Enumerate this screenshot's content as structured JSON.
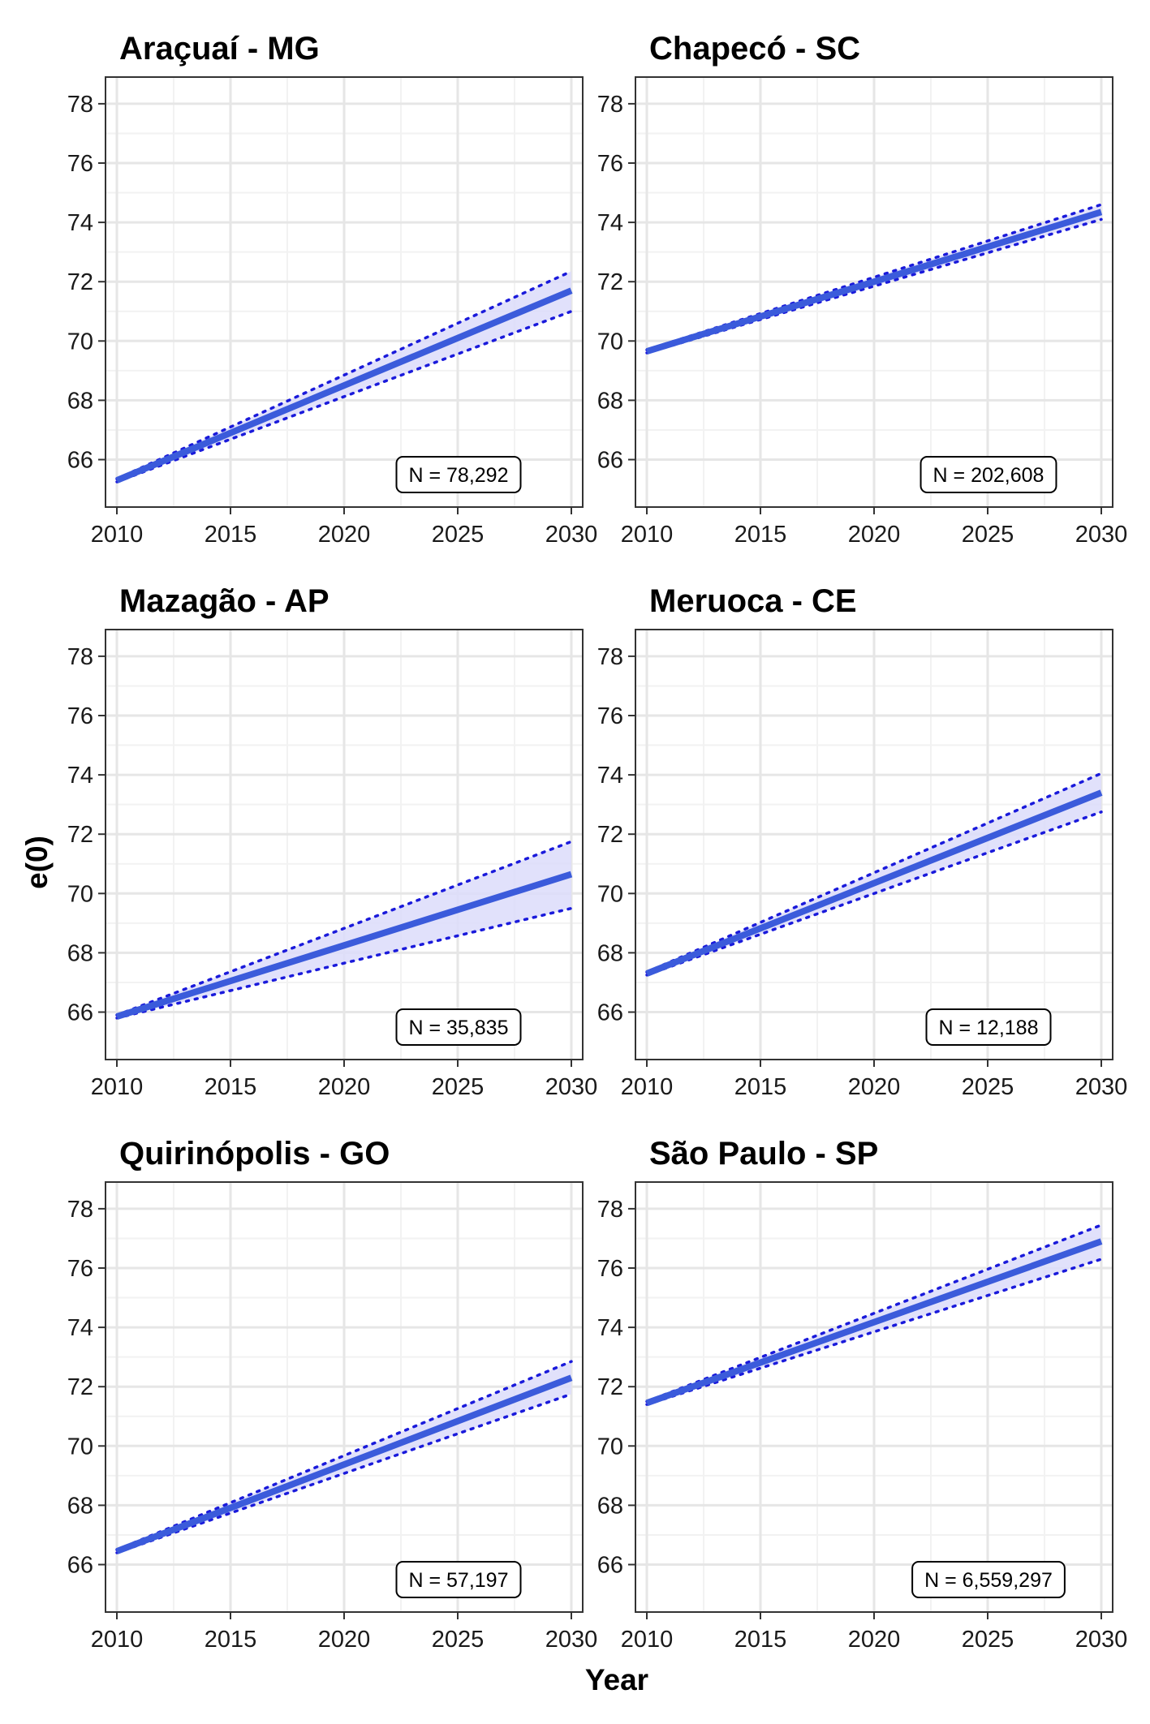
{
  "figure": {
    "ylabel": "e(0)",
    "xlabel": "Year"
  },
  "colors": {
    "line": "#3b5bdb",
    "band_fill": "#dcdcfa",
    "bound": "#1a1adb",
    "grid_major": "#e6e6e6",
    "grid_minor": "#f2f2f2",
    "frame": "#333333"
  },
  "chart_data": [
    {
      "type": "line",
      "title": "Araçuaí - MG",
      "annotation": "N = 78,292",
      "x": [
        2010,
        2030
      ],
      "mean": [
        65.3,
        71.7
      ],
      "lower": [
        65.25,
        71.0
      ],
      "upper": [
        65.35,
        72.35
      ],
      "xticks": [
        2010,
        2015,
        2020,
        2025,
        2030
      ],
      "yticks": [
        66,
        68,
        70,
        72,
        74,
        76,
        78
      ],
      "xlim": [
        2009.5,
        2030.5
      ],
      "ylim": [
        64.4,
        78.9
      ],
      "grid": true
    },
    {
      "type": "line",
      "title": "Chapecó - SC",
      "annotation": "N = 202,608",
      "x": [
        2010,
        2030
      ],
      "mean": [
        69.65,
        74.35
      ],
      "lower": [
        69.6,
        74.1
      ],
      "upper": [
        69.7,
        74.6
      ],
      "xticks": [
        2010,
        2015,
        2020,
        2025,
        2030
      ],
      "yticks": [
        66,
        68,
        70,
        72,
        74,
        76,
        78
      ],
      "xlim": [
        2009.5,
        2030.5
      ],
      "ylim": [
        64.4,
        78.9
      ],
      "grid": true
    },
    {
      "type": "line",
      "title": "Mazagão - AP",
      "annotation": "N = 35,835",
      "x": [
        2010,
        2030
      ],
      "mean": [
        65.85,
        70.65
      ],
      "lower": [
        65.8,
        69.5
      ],
      "upper": [
        65.9,
        71.75
      ],
      "xticks": [
        2010,
        2015,
        2020,
        2025,
        2030
      ],
      "yticks": [
        66,
        68,
        70,
        72,
        74,
        76,
        78
      ],
      "xlim": [
        2009.5,
        2030.5
      ],
      "ylim": [
        64.4,
        78.9
      ],
      "grid": true
    },
    {
      "type": "line",
      "title": "Meruoca - CE",
      "annotation": "N = 12,188",
      "x": [
        2010,
        2030
      ],
      "mean": [
        67.3,
        73.4
      ],
      "lower": [
        67.25,
        72.75
      ],
      "upper": [
        67.35,
        74.05
      ],
      "xticks": [
        2010,
        2015,
        2020,
        2025,
        2030
      ],
      "yticks": [
        66,
        68,
        70,
        72,
        74,
        76,
        78
      ],
      "xlim": [
        2009.5,
        2030.5
      ],
      "ylim": [
        64.4,
        78.9
      ],
      "grid": true
    },
    {
      "type": "line",
      "title": "Quirinópolis - GO",
      "annotation": "N = 57,197",
      "x": [
        2010,
        2030
      ],
      "mean": [
        66.45,
        72.3
      ],
      "lower": [
        66.4,
        71.75
      ],
      "upper": [
        66.5,
        72.85
      ],
      "xticks": [
        2010,
        2015,
        2020,
        2025,
        2030
      ],
      "yticks": [
        66,
        68,
        70,
        72,
        74,
        76,
        78
      ],
      "xlim": [
        2009.5,
        2030.5
      ],
      "ylim": [
        64.4,
        78.9
      ],
      "grid": true
    },
    {
      "type": "line",
      "title": "São Paulo - SP",
      "annotation": "N = 6,559,297",
      "x": [
        2010,
        2030
      ],
      "mean": [
        71.45,
        76.9
      ],
      "lower": [
        71.4,
        76.3
      ],
      "upper": [
        71.5,
        77.45
      ],
      "xticks": [
        2010,
        2015,
        2020,
        2025,
        2030
      ],
      "yticks": [
        66,
        68,
        70,
        72,
        74,
        76,
        78
      ],
      "xlim": [
        2009.5,
        2030.5
      ],
      "ylim": [
        64.4,
        78.9
      ],
      "grid": true
    }
  ]
}
